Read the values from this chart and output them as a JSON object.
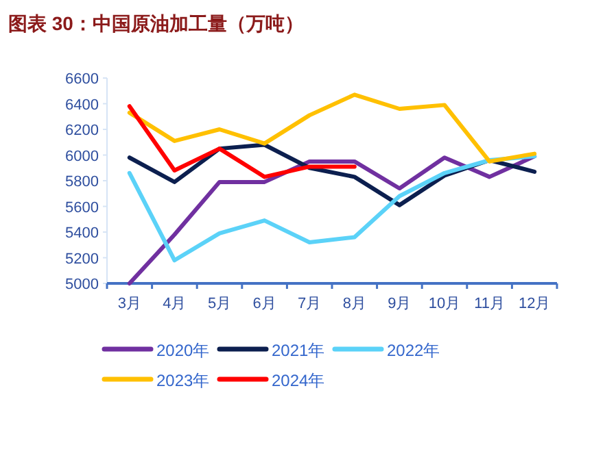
{
  "chart_data": {
    "type": "line",
    "title": "图表 30：中国原油加工量（万吨）",
    "categories": [
      "3月",
      "4月",
      "5月",
      "6月",
      "7月",
      "8月",
      "9月",
      "10月",
      "11月",
      "12月"
    ],
    "series": [
      {
        "name": "2020年",
        "color": "#7030a0",
        "values": [
          5000,
          5380,
          5790,
          5790,
          5950,
          5950,
          5740,
          5980,
          5830,
          5990
        ]
      },
      {
        "name": "2021年",
        "color": "#0c1f4f",
        "values": [
          5980,
          5790,
          6050,
          6080,
          5900,
          5830,
          5610,
          5840,
          5960,
          5870
        ]
      },
      {
        "name": "2022年",
        "color": "#5bd2f8",
        "values": [
          5860,
          5180,
          5390,
          5490,
          5320,
          5360,
          5680,
          5860,
          5960,
          5990
        ]
      },
      {
        "name": "2023年",
        "color": "#ffc000",
        "values": [
          6330,
          6110,
          6200,
          6090,
          6310,
          6470,
          6360,
          6390,
          5950,
          6010
        ]
      },
      {
        "name": "2024年",
        "color": "#ff0000",
        "values": [
          6380,
          5880,
          6050,
          5830,
          5910,
          5910,
          null,
          null,
          null,
          null
        ]
      }
    ],
    "ylim": [
      5000,
      6600
    ],
    "yticks": [
      5000,
      5200,
      5400,
      5600,
      5800,
      6000,
      6200,
      6400,
      6600
    ],
    "grid": false,
    "legend": "bottom",
    "line_style": "solid",
    "marker": "none"
  }
}
